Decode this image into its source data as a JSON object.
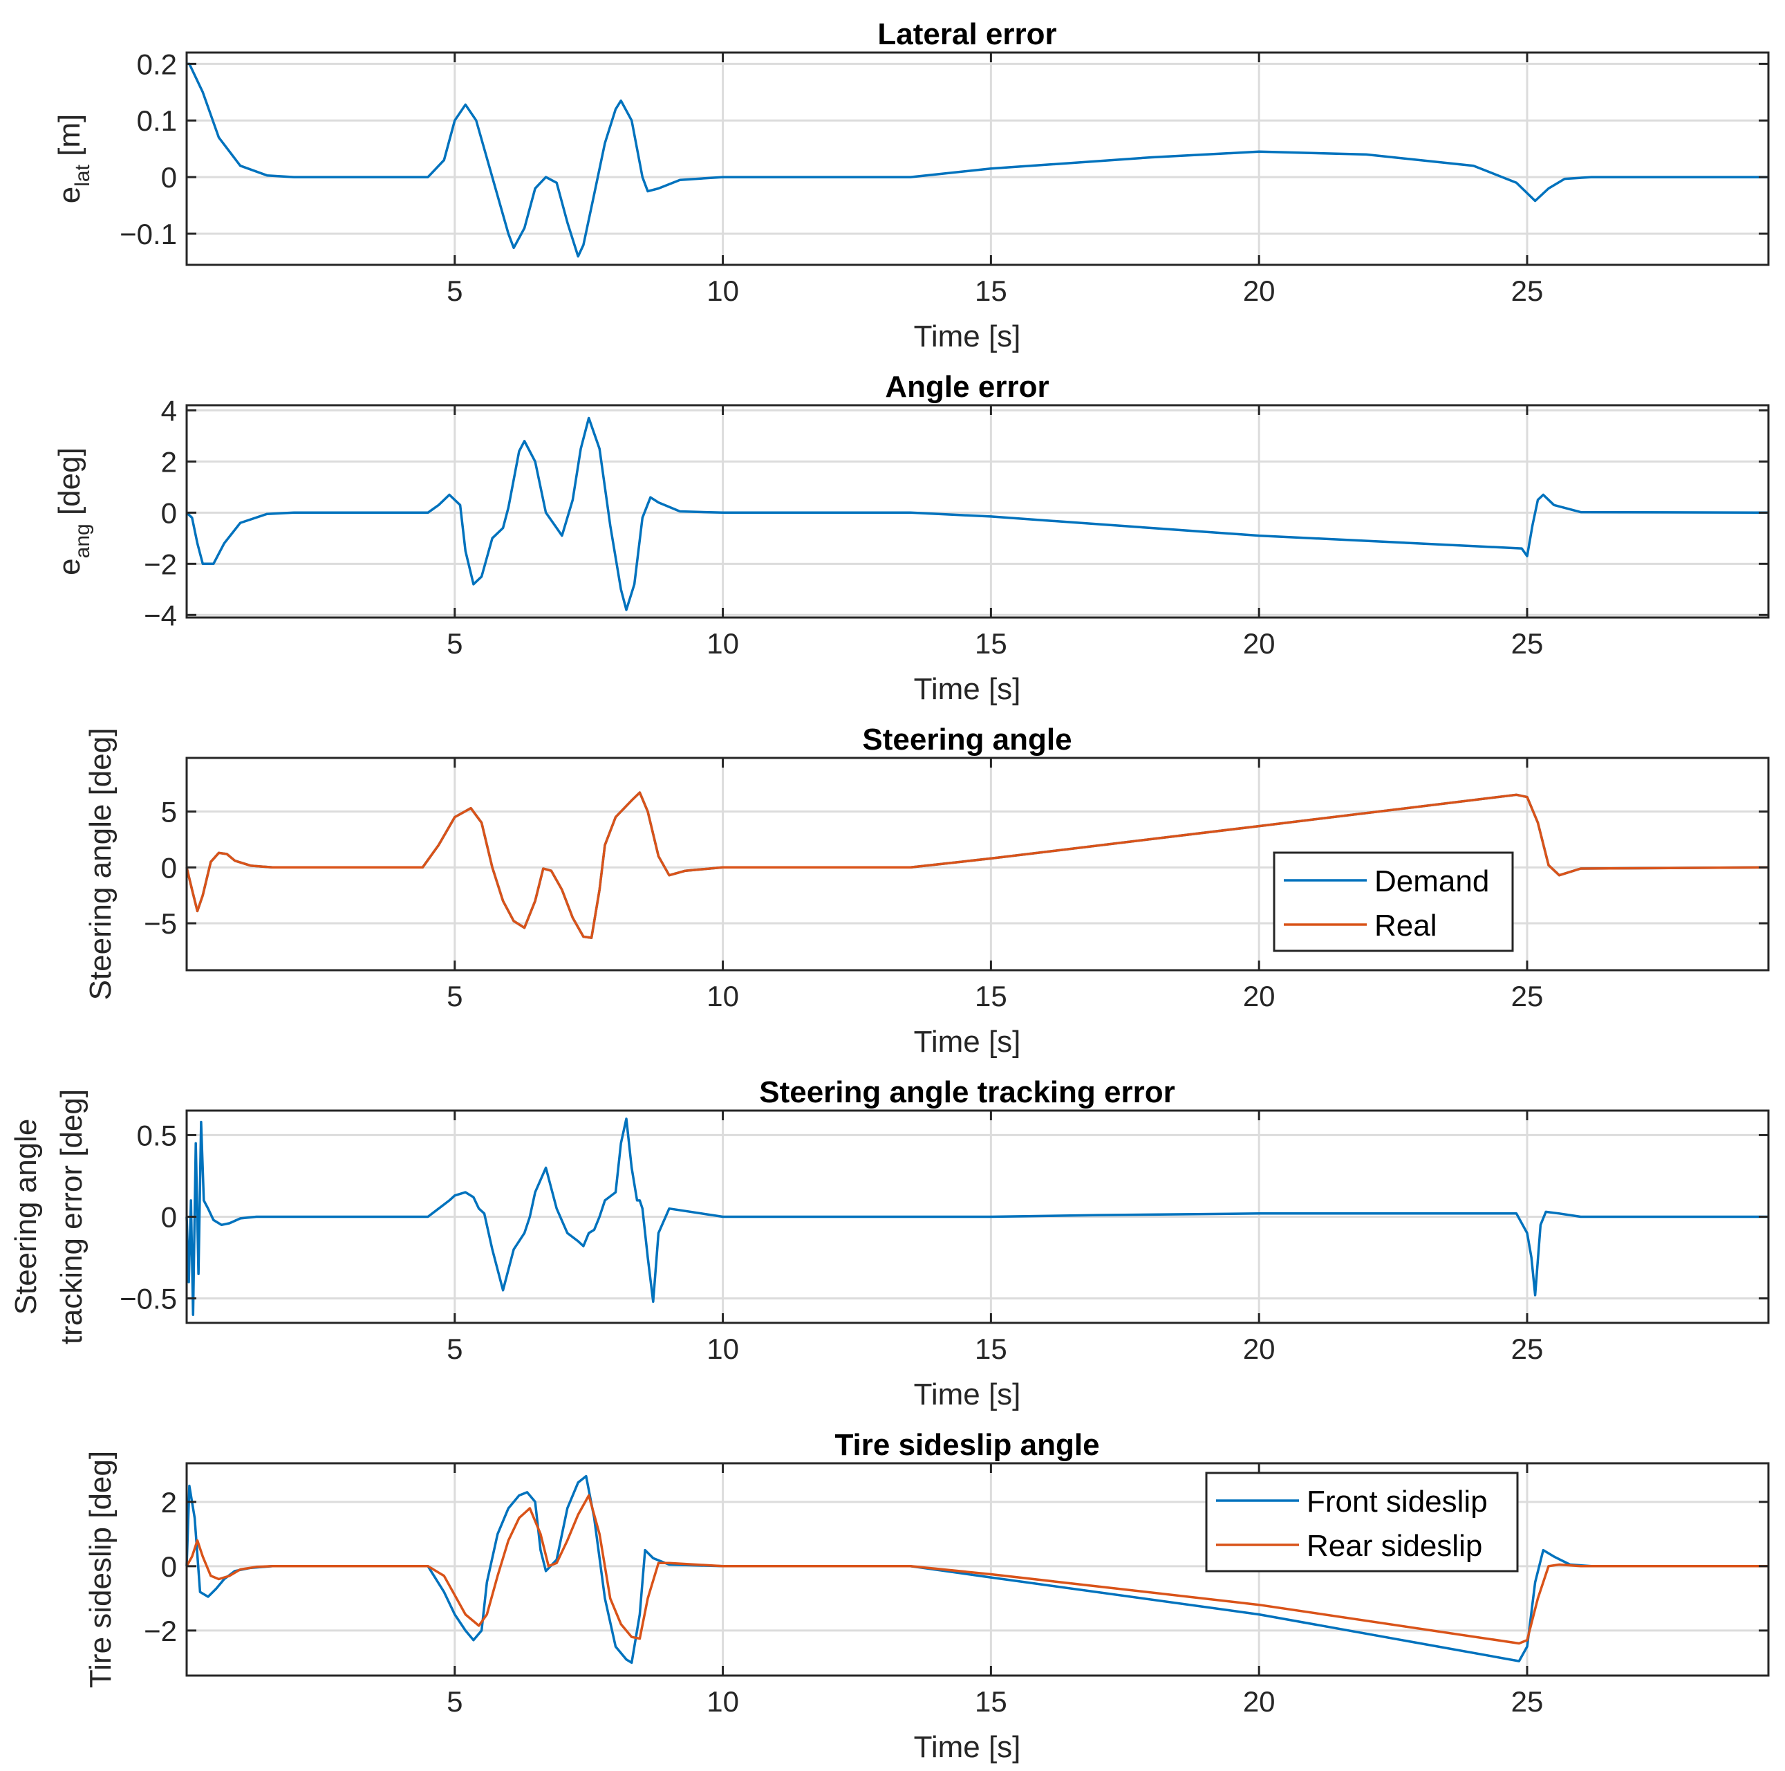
{
  "chart_data": [
    {
      "type": "line",
      "title": "Lateral error",
      "xlabel": "Time [s]",
      "ylabel": {
        "main": "e",
        "sub": "lat",
        "unit": " [m]"
      },
      "xlim": [
        0,
        29.5
      ],
      "ylim": [
        -0.155,
        0.22
      ],
      "xticks": [
        5,
        10,
        15,
        20,
        25
      ],
      "xtick_labels": [
        "5",
        "10",
        "15",
        "20",
        "25"
      ],
      "yticks": [
        -0.1,
        0,
        0.1,
        0.2
      ],
      "ytick_labels": [
        "−0.1",
        "0",
        "0.1",
        "0.2"
      ],
      "legend": null,
      "series": [
        {
          "name": "e_lat",
          "color": "#0072BD",
          "x": [
            0,
            0.05,
            0.3,
            0.6,
            1.0,
            1.5,
            2.0,
            4.5,
            4.8,
            5.0,
            5.2,
            5.4,
            5.7,
            6.0,
            6.1,
            6.3,
            6.5,
            6.7,
            6.9,
            7.1,
            7.3,
            7.4,
            7.6,
            7.8,
            8.0,
            8.1,
            8.3,
            8.5,
            8.6,
            8.8,
            9.2,
            10,
            13.5,
            15,
            18,
            20,
            22,
            24,
            24.8,
            25.15,
            25.4,
            25.7,
            26.2,
            29.5
          ],
          "y": [
            0.2,
            0.2,
            0.15,
            0.07,
            0.02,
            0.003,
            0,
            0,
            0.03,
            0.1,
            0.128,
            0.1,
            0.0,
            -0.1,
            -0.125,
            -0.09,
            -0.02,
            0.0,
            -0.01,
            -0.08,
            -0.14,
            -0.12,
            -0.03,
            0.06,
            0.12,
            0.135,
            0.1,
            0.0,
            -0.025,
            -0.02,
            -0.005,
            0,
            0,
            0.015,
            0.035,
            0.045,
            0.04,
            0.02,
            -0.01,
            -0.042,
            -0.02,
            -0.003,
            0,
            0
          ]
        }
      ]
    },
    {
      "type": "line",
      "title": "Angle error",
      "xlabel": "Time [s]",
      "ylabel": {
        "main": "e",
        "sub": "ang",
        "unit": " [deg]"
      },
      "xlim": [
        0,
        29.5
      ],
      "ylim": [
        -4.1,
        4.2
      ],
      "xticks": [
        5,
        10,
        15,
        20,
        25
      ],
      "xtick_labels": [
        "5",
        "10",
        "15",
        "20",
        "25"
      ],
      "yticks": [
        -4,
        -2,
        0,
        2,
        4
      ],
      "ytick_labels": [
        "−4",
        "−2",
        "0",
        "2",
        "4"
      ],
      "legend": null,
      "series": [
        {
          "name": "e_ang",
          "color": "#0072BD",
          "x": [
            0,
            0.1,
            0.2,
            0.3,
            0.5,
            0.7,
            1.0,
            1.5,
            2.0,
            4.5,
            4.7,
            4.9,
            5.1,
            5.2,
            5.35,
            5.5,
            5.7,
            5.9,
            6.0,
            6.2,
            6.3,
            6.5,
            6.7,
            6.9,
            7.0,
            7.2,
            7.35,
            7.5,
            7.7,
            7.9,
            8.1,
            8.2,
            8.35,
            8.5,
            8.65,
            8.8,
            9.2,
            10,
            13.5,
            15,
            20,
            24.9,
            25.0,
            25.1,
            25.2,
            25.3,
            25.5,
            26.0,
            29.5
          ],
          "y": [
            0,
            -0.2,
            -1.2,
            -2.0,
            -2.0,
            -1.2,
            -0.4,
            -0.05,
            0,
            0,
            0.3,
            0.7,
            0.3,
            -1.5,
            -2.8,
            -2.5,
            -1.0,
            -0.6,
            0.2,
            2.4,
            2.8,
            2.0,
            0.0,
            -0.6,
            -0.9,
            0.5,
            2.5,
            3.7,
            2.5,
            -0.5,
            -3.0,
            -3.8,
            -2.8,
            -0.2,
            0.6,
            0.4,
            0.05,
            0,
            0,
            -0.15,
            -0.9,
            -1.4,
            -1.7,
            -0.5,
            0.5,
            0.7,
            0.3,
            0.02,
            0
          ]
        }
      ]
    },
    {
      "type": "line",
      "title": "Steering angle",
      "xlabel": "Time [s]",
      "ylabel": {
        "main": "Steering angle [deg]"
      },
      "xlim": [
        0,
        29.5
      ],
      "ylim": [
        -9.2,
        9.8
      ],
      "xticks": [
        5,
        10,
        15,
        20,
        25
      ],
      "xtick_labels": [
        "5",
        "10",
        "15",
        "20",
        "25"
      ],
      "yticks": [
        -5,
        0,
        5
      ],
      "ytick_labels": [
        "−5",
        "0",
        "5"
      ],
      "legend": {
        "position": "lower-right",
        "entries": [
          "Demand",
          "Real"
        ]
      },
      "series": [
        {
          "name": "Demand",
          "color": "#0072BD",
          "x": [
            0,
            0.1,
            0.2,
            0.3,
            0.45,
            0.6,
            0.75,
            0.9,
            1.2,
            1.6,
            2.0,
            4.4,
            4.7,
            5.0,
            5.3,
            5.5,
            5.7,
            5.9,
            6.1,
            6.3,
            6.5,
            6.65,
            6.8,
            7.0,
            7.2,
            7.4,
            7.55,
            7.7,
            7.8,
            8.0,
            8.3,
            8.45,
            8.6,
            8.8,
            9.0,
            9.3,
            10,
            13.5,
            15,
            20,
            24.8,
            25.0,
            25.2,
            25.4,
            25.6,
            26.0,
            29.5
          ],
          "y": [
            0,
            -2.0,
            -3.9,
            -2.5,
            0.5,
            1.3,
            1.2,
            0.6,
            0.15,
            0,
            0,
            0,
            2.0,
            4.5,
            5.3,
            4.0,
            0,
            -3.0,
            -4.8,
            -5.4,
            -3.0,
            -0.1,
            -0.3,
            -2.0,
            -4.5,
            -6.2,
            -6.3,
            -2.0,
            2.0,
            4.5,
            6.0,
            6.7,
            5.0,
            1.0,
            -0.7,
            -0.3,
            0,
            0,
            0.8,
            3.7,
            6.5,
            6.3,
            4.0,
            0.2,
            -0.7,
            -0.1,
            0
          ]
        },
        {
          "name": "Real",
          "color": "#D95319",
          "x": [
            0,
            0.1,
            0.2,
            0.3,
            0.45,
            0.6,
            0.75,
            0.9,
            1.2,
            1.6,
            2.0,
            4.4,
            4.7,
            5.0,
            5.3,
            5.5,
            5.7,
            5.9,
            6.1,
            6.3,
            6.5,
            6.65,
            6.8,
            7.0,
            7.2,
            7.4,
            7.55,
            7.7,
            7.8,
            8.0,
            8.3,
            8.45,
            8.6,
            8.8,
            9.0,
            9.3,
            10,
            13.5,
            15,
            20,
            24.8,
            25.0,
            25.2,
            25.4,
            25.6,
            26.0,
            29.5
          ],
          "y": [
            0,
            -2.0,
            -3.9,
            -2.5,
            0.5,
            1.3,
            1.2,
            0.6,
            0.15,
            0,
            0,
            0,
            2.0,
            4.5,
            5.3,
            4.0,
            0,
            -3.0,
            -4.8,
            -5.4,
            -3.0,
            -0.1,
            -0.3,
            -2.0,
            -4.5,
            -6.2,
            -6.3,
            -2.0,
            2.0,
            4.5,
            6.0,
            6.7,
            5.0,
            1.0,
            -0.7,
            -0.3,
            0,
            0,
            0.8,
            3.7,
            6.5,
            6.3,
            4.0,
            0.2,
            -0.7,
            -0.1,
            0
          ]
        }
      ]
    },
    {
      "type": "line",
      "title": "Steering angle tracking error",
      "xlabel": "Time [s]",
      "ylabel": {
        "main": "Steering angle",
        "main2": "tracking error [deg]"
      },
      "xlim": [
        0,
        29.5
      ],
      "ylim": [
        -0.65,
        0.65
      ],
      "xticks": [
        5,
        10,
        15,
        20,
        25
      ],
      "xtick_labels": [
        "5",
        "10",
        "15",
        "20",
        "25"
      ],
      "yticks": [
        -0.5,
        0,
        0.5
      ],
      "ytick_labels": [
        "−0.5",
        "0",
        "0.5"
      ],
      "legend": null,
      "series": [
        {
          "name": "tracking error",
          "color": "#0072BD",
          "x": [
            0,
            0.04,
            0.08,
            0.12,
            0.17,
            0.22,
            0.27,
            0.32,
            0.4,
            0.5,
            0.65,
            0.8,
            1.0,
            1.3,
            1.7,
            4.5,
            4.7,
            4.9,
            5.0,
            5.2,
            5.35,
            5.45,
            5.55,
            5.7,
            5.9,
            6.1,
            6.3,
            6.4,
            6.5,
            6.7,
            6.9,
            7.1,
            7.3,
            7.4,
            7.5,
            7.6,
            7.7,
            7.8,
            8.0,
            8.1,
            8.2,
            8.3,
            8.4,
            8.45,
            8.5,
            8.6,
            8.7,
            8.8,
            9.0,
            10,
            13.5,
            15,
            17,
            20,
            24.8,
            25.0,
            25.08,
            25.15,
            25.25,
            25.35,
            25.6,
            26,
            29.5
          ],
          "y": [
            0,
            -0.4,
            0.1,
            -0.6,
            0.45,
            -0.35,
            0.58,
            0.1,
            0.05,
            -0.02,
            -0.05,
            -0.04,
            -0.01,
            0,
            0,
            0,
            0.05,
            0.1,
            0.13,
            0.15,
            0.12,
            0.05,
            0.02,
            -0.2,
            -0.45,
            -0.2,
            -0.1,
            0.0,
            0.15,
            0.3,
            0.05,
            -0.1,
            -0.15,
            -0.18,
            -0.1,
            -0.08,
            0.0,
            0.1,
            0.15,
            0.45,
            0.6,
            0.3,
            0.1,
            0.1,
            0.05,
            -0.25,
            -0.52,
            -0.1,
            0.05,
            0,
            0,
            0,
            0.01,
            0.02,
            0.02,
            -0.1,
            -0.25,
            -0.48,
            -0.05,
            0.03,
            0.02,
            0,
            0
          ]
        }
      ]
    },
    {
      "type": "line",
      "title": "Tire sideslip angle",
      "xlabel": "Time [s]",
      "ylabel": {
        "main": "Tire sideslip [deg]"
      },
      "xlim": [
        0,
        29.5
      ],
      "ylim": [
        -3.4,
        3.2
      ],
      "xticks": [
        5,
        10,
        15,
        20,
        25
      ],
      "xtick_labels": [
        "5",
        "10",
        "15",
        "20",
        "25"
      ],
      "yticks": [
        -2,
        0,
        2
      ],
      "ytick_labels": [
        "−2",
        "0",
        "2"
      ],
      "legend": {
        "position": "top-right",
        "entries": [
          "Front sideslip",
          "Rear sideslip"
        ]
      },
      "series": [
        {
          "name": "Front sideslip",
          "color": "#0072BD",
          "x": [
            0,
            0.05,
            0.15,
            0.25,
            0.4,
            0.55,
            0.7,
            0.9,
            1.2,
            1.6,
            2.0,
            4.5,
            4.8,
            5.0,
            5.2,
            5.35,
            5.5,
            5.6,
            5.8,
            6.0,
            6.2,
            6.35,
            6.5,
            6.6,
            6.7,
            6.9,
            7.1,
            7.3,
            7.45,
            7.6,
            7.8,
            8.0,
            8.2,
            8.3,
            8.45,
            8.55,
            8.7,
            9.0,
            10,
            13.5,
            15,
            20,
            24.85,
            25.0,
            25.15,
            25.3,
            25.5,
            25.8,
            26.2,
            29.5
          ],
          "y": [
            0,
            2.5,
            1.5,
            -0.8,
            -0.95,
            -0.7,
            -0.4,
            -0.15,
            -0.05,
            0,
            0,
            0,
            -0.8,
            -1.5,
            -2.0,
            -2.3,
            -2.0,
            -0.5,
            1.0,
            1.8,
            2.2,
            2.3,
            2.0,
            0.5,
            -0.15,
            0.2,
            1.8,
            2.6,
            2.8,
            1.5,
            -1.0,
            -2.5,
            -2.9,
            -3.0,
            -1.5,
            0.5,
            0.25,
            0.05,
            0,
            0,
            -0.35,
            -1.5,
            -2.95,
            -2.5,
            -0.5,
            0.5,
            0.3,
            0.05,
            0,
            0
          ]
        },
        {
          "name": "Rear sideslip",
          "color": "#D95319",
          "x": [
            0,
            0.1,
            0.2,
            0.3,
            0.45,
            0.6,
            0.8,
            1.0,
            1.3,
            1.6,
            2.0,
            4.5,
            4.8,
            5.0,
            5.2,
            5.45,
            5.6,
            5.8,
            6.0,
            6.2,
            6.4,
            6.6,
            6.75,
            6.9,
            7.1,
            7.3,
            7.5,
            7.7,
            7.9,
            8.1,
            8.3,
            8.45,
            8.6,
            8.8,
            9.0,
            10,
            13.5,
            15,
            20,
            24.85,
            25.0,
            25.2,
            25.4,
            25.6,
            26.0,
            29.5
          ],
          "y": [
            0,
            0.3,
            0.8,
            0.3,
            -0.3,
            -0.4,
            -0.3,
            -0.1,
            -0.02,
            0,
            0,
            0,
            -0.3,
            -0.9,
            -1.5,
            -1.85,
            -1.5,
            -0.3,
            0.8,
            1.5,
            1.8,
            1.0,
            0.0,
            0.1,
            0.8,
            1.6,
            2.2,
            1.0,
            -1.0,
            -1.8,
            -2.2,
            -2.25,
            -1.0,
            0.1,
            0.1,
            0,
            0,
            -0.25,
            -1.2,
            -2.4,
            -2.3,
            -1.0,
            0.0,
            0.05,
            0,
            0
          ]
        }
      ]
    }
  ]
}
